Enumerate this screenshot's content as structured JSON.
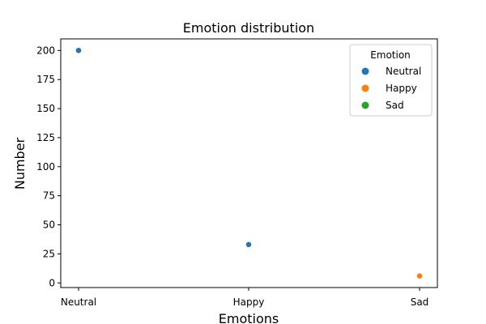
{
  "chart_data": {
    "type": "scatter",
    "title": "Emotion distribution",
    "xlabel": "Emotions",
    "ylabel": "Number",
    "categories": [
      "Neutral",
      "Happy",
      "Sad"
    ],
    "ylim": [
      -4,
      210
    ],
    "yticks": [
      0,
      25,
      50,
      75,
      100,
      125,
      150,
      175,
      200
    ],
    "points": [
      {
        "x": "Neutral",
        "y": 200,
        "hue": "Neutral"
      },
      {
        "x": "Happy",
        "y": 33,
        "hue": "Neutral"
      },
      {
        "x": "Sad",
        "y": 6,
        "hue": "Happy"
      }
    ],
    "legend": {
      "title": "Emotion",
      "placement": "top-right",
      "entries": [
        {
          "label": "Neutral",
          "color": "#1f77b4"
        },
        {
          "label": "Happy",
          "color": "#ff7f0e"
        },
        {
          "label": "Sad",
          "color": "#2ca02c"
        }
      ]
    },
    "grid": false
  }
}
